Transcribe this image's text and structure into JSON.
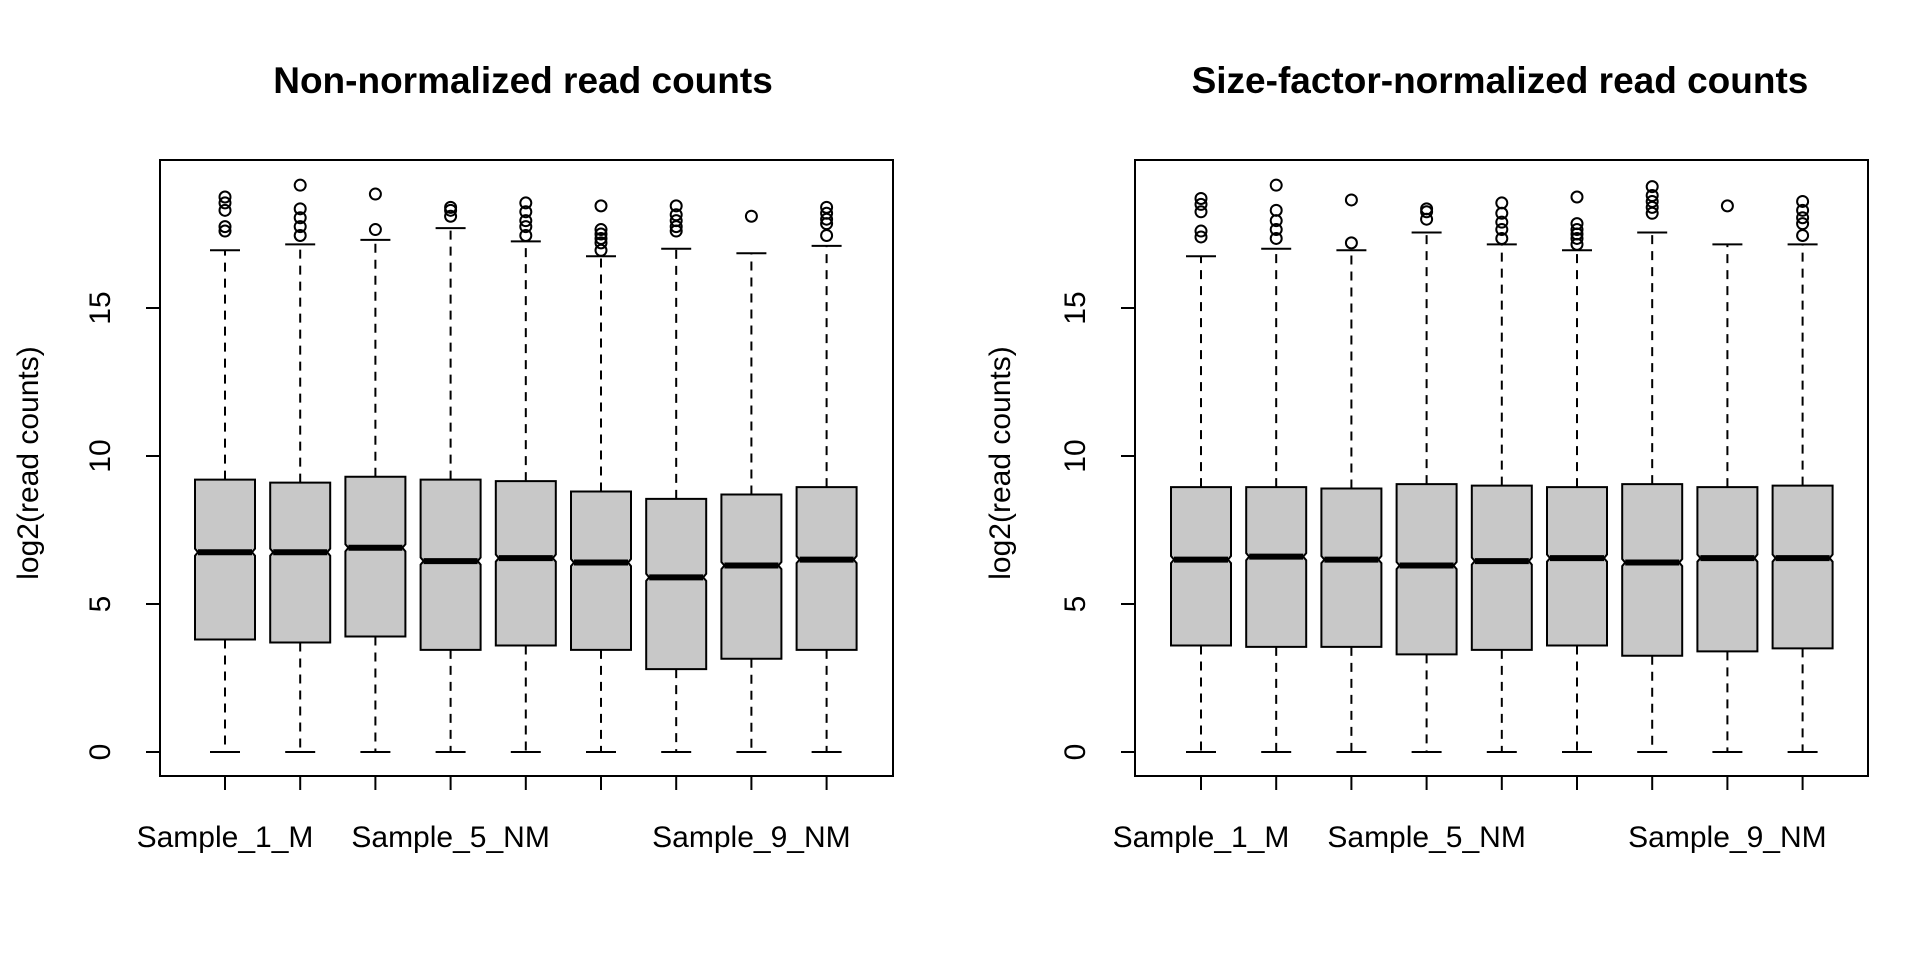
{
  "chart_data": [
    {
      "type": "boxplot",
      "title": "Non-normalized read counts",
      "xlabel": "",
      "ylabel": "log2(read counts)",
      "yticks": [
        0,
        5,
        10,
        15
      ],
      "ylim": [
        -0.8,
        20
      ],
      "notched": true,
      "box_fill": "#c8c8c8",
      "x_tick_labels": [
        "Sample_1_M",
        "",
        "",
        "Sample_5_NM",
        "",
        "",
        "",
        "Sample_9_NM",
        ""
      ],
      "samples": [
        {
          "q1": 3.8,
          "median": 6.75,
          "q3": 9.2,
          "whisker_low": 0,
          "whisker_high": 16.95,
          "outliers": [
            17.6,
            17.75,
            18.3,
            18.55,
            18.75
          ]
        },
        {
          "q1": 3.7,
          "median": 6.75,
          "q3": 9.1,
          "whisker_low": 0,
          "whisker_high": 17.15,
          "outliers": [
            17.45,
            17.75,
            18.05,
            18.35,
            19.15
          ]
        },
        {
          "q1": 3.9,
          "median": 6.9,
          "q3": 9.3,
          "whisker_low": 0,
          "whisker_high": 17.3,
          "outliers": [
            17.65,
            18.85
          ]
        },
        {
          "q1": 3.45,
          "median": 6.45,
          "q3": 9.2,
          "whisker_low": 0,
          "whisker_high": 17.7,
          "outliers": [
            18.1,
            18.3,
            18.4
          ]
        },
        {
          "q1": 3.6,
          "median": 6.55,
          "q3": 9.15,
          "whisker_low": 0,
          "whisker_high": 17.25,
          "outliers": [
            17.45,
            17.75,
            17.95,
            18.25,
            18.55
          ]
        },
        {
          "q1": 3.45,
          "median": 6.4,
          "q3": 8.8,
          "whisker_low": 0,
          "whisker_high": 16.75,
          "outliers": [
            16.95,
            17.2,
            17.35,
            17.5,
            17.65,
            18.45
          ]
        },
        {
          "q1": 2.8,
          "median": 5.9,
          "q3": 8.55,
          "whisker_low": 0,
          "whisker_high": 17.0,
          "outliers": [
            17.6,
            17.75,
            17.95,
            18.15,
            18.45
          ]
        },
        {
          "q1": 3.15,
          "median": 6.3,
          "q3": 8.7,
          "whisker_low": 0,
          "whisker_high": 16.85,
          "outliers": [
            18.1
          ]
        },
        {
          "q1": 3.45,
          "median": 6.5,
          "q3": 8.95,
          "whisker_low": 0,
          "whisker_high": 17.1,
          "outliers": [
            17.45,
            17.85,
            18.0,
            18.2,
            18.4
          ]
        }
      ]
    },
    {
      "type": "boxplot",
      "title": "Size-factor-normalized read counts",
      "xlabel": "",
      "ylabel": "log2(read counts)",
      "yticks": [
        0,
        5,
        10,
        15
      ],
      "ylim": [
        -0.8,
        20
      ],
      "notched": true,
      "box_fill": "#c8c8c8",
      "x_tick_labels": [
        "Sample_1_M",
        "",
        "",
        "Sample_5_NM",
        "",
        "",
        "",
        "Sample_9_NM",
        ""
      ],
      "samples": [
        {
          "q1": 3.6,
          "median": 6.5,
          "q3": 8.95,
          "whisker_low": 0,
          "whisker_high": 16.75,
          "outliers": [
            17.4,
            17.6,
            18.25,
            18.5,
            18.7
          ]
        },
        {
          "q1": 3.55,
          "median": 6.6,
          "q3": 8.95,
          "whisker_low": 0,
          "whisker_high": 17.0,
          "outliers": [
            17.35,
            17.65,
            17.95,
            18.3,
            19.15
          ]
        },
        {
          "q1": 3.55,
          "median": 6.5,
          "q3": 8.9,
          "whisker_low": 0,
          "whisker_high": 16.95,
          "outliers": [
            17.2,
            18.65
          ]
        },
        {
          "q1": 3.3,
          "median": 6.3,
          "q3": 9.05,
          "whisker_low": 0,
          "whisker_high": 17.55,
          "outliers": [
            18.0,
            18.25,
            18.35
          ]
        },
        {
          "q1": 3.45,
          "median": 6.45,
          "q3": 9.0,
          "whisker_low": 0,
          "whisker_high": 17.15,
          "outliers": [
            17.35,
            17.65,
            17.9,
            18.2,
            18.55
          ]
        },
        {
          "q1": 3.6,
          "median": 6.55,
          "q3": 8.95,
          "whisker_low": 0,
          "whisker_high": 16.95,
          "outliers": [
            17.15,
            17.35,
            17.5,
            17.65,
            17.85,
            18.75
          ]
        },
        {
          "q1": 3.25,
          "median": 6.4,
          "q3": 9.05,
          "whisker_low": 0,
          "whisker_high": 17.55,
          "outliers": [
            18.2,
            18.4,
            18.6,
            18.8,
            19.1
          ]
        },
        {
          "q1": 3.4,
          "median": 6.55,
          "q3": 8.95,
          "whisker_low": 0,
          "whisker_high": 17.15,
          "outliers": [
            18.45
          ]
        },
        {
          "q1": 3.5,
          "median": 6.55,
          "q3": 9.0,
          "whisker_low": 0,
          "whisker_high": 17.15,
          "outliers": [
            17.45,
            17.85,
            18.05,
            18.3,
            18.6
          ]
        }
      ]
    }
  ]
}
